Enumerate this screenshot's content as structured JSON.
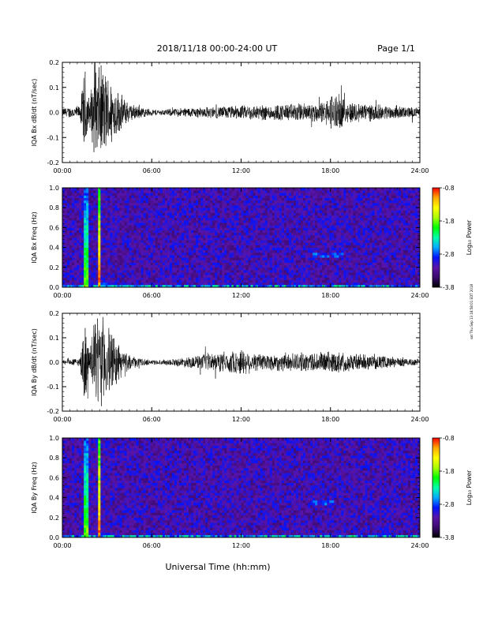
{
  "header": {
    "title": "2018/11/18  00:00-24:00 UT",
    "page": "Page 1/1"
  },
  "footer": {
    "xlabel": "Universal Time (hh:mm)"
  },
  "side_note": "sat Thu Sep 13 18:58:01 EDT 2018",
  "colorbar": {
    "label": "Log₁₀ Power",
    "ticks": [
      "-0.8",
      "-1.8",
      "-2.8",
      "-3.8"
    ],
    "colors": [
      "#000000",
      "#3a0a6e",
      "#5a14a8",
      "#0014ff",
      "#00aaff",
      "#00ffaa",
      "#00ff00",
      "#aaff00",
      "#ffff00",
      "#ffaa00",
      "#ff0000"
    ]
  },
  "chart_data": [
    {
      "type": "line",
      "ylabel": "IQA Bx dB/dt (nT/sec)",
      "x_range": [
        0,
        24
      ],
      "xticks": [
        "00:00",
        "06:00",
        "12:00",
        "18:00",
        "24:00"
      ],
      "ylim": [
        -0.2,
        0.2
      ],
      "yticks": [
        "0.2",
        "0.1",
        "0.0",
        "-0.1",
        "-0.2"
      ],
      "activity": [
        [
          0,
          0.02
        ],
        [
          1.2,
          0.03
        ],
        [
          1.5,
          0.2
        ],
        [
          1.8,
          0.06
        ],
        [
          2.2,
          0.2
        ],
        [
          2.7,
          0.2
        ],
        [
          3.2,
          0.15
        ],
        [
          3.8,
          0.09
        ],
        [
          4.5,
          0.04
        ],
        [
          5.5,
          0.02
        ],
        [
          6.5,
          0.012
        ],
        [
          8,
          0.02
        ],
        [
          10,
          0.025
        ],
        [
          12,
          0.03
        ],
        [
          14,
          0.035
        ],
        [
          16,
          0.04
        ],
        [
          17.5,
          0.045
        ],
        [
          18.3,
          0.09
        ],
        [
          19,
          0.05
        ],
        [
          21,
          0.035
        ],
        [
          24,
          0.02
        ]
      ]
    },
    {
      "type": "heatmap",
      "ylabel": "IQA Bx Freq (Hz)",
      "x_range": [
        0,
        24
      ],
      "xticks": [
        "00:00",
        "06:00",
        "12:00",
        "18:00",
        "24:00"
      ],
      "ylim": [
        0,
        1
      ],
      "yticks": [
        "1.0",
        "0.8",
        "0.6",
        "0.4",
        "0.2",
        "0.0"
      ],
      "zlim": [
        -3.8,
        -0.8
      ],
      "features": [
        {
          "t": 1.6,
          "f_max": 1.0,
          "power": -1.6
        },
        {
          "t": 2.5,
          "f_max": 1.0,
          "power": -0.8
        },
        {
          "t_range": [
            2.5,
            5
          ],
          "f_max": 0.1,
          "power": -2.3
        },
        {
          "t_range": [
            14.5,
            16
          ],
          "f": 0.38,
          "power": -2.8
        },
        {
          "t_range": [
            16.8,
            18.8
          ],
          "f": 0.33,
          "power": -2.6
        }
      ]
    },
    {
      "type": "line",
      "ylabel": "IQA By dB/dt (nT/sec)",
      "x_range": [
        0,
        24
      ],
      "xticks": [
        "00:00",
        "06:00",
        "12:00",
        "18:00",
        "24:00"
      ],
      "ylim": [
        -0.2,
        0.2
      ],
      "yticks": [
        "0.2",
        "0.1",
        "0.0",
        "-0.1",
        "-0.2"
      ],
      "activity": [
        [
          0,
          0.01
        ],
        [
          1.2,
          0.02
        ],
        [
          1.5,
          0.2
        ],
        [
          1.8,
          0.05
        ],
        [
          2.2,
          0.2
        ],
        [
          2.7,
          0.2
        ],
        [
          3.2,
          0.15
        ],
        [
          3.8,
          0.08
        ],
        [
          4.5,
          0.03
        ],
        [
          5.5,
          0.015
        ],
        [
          6.5,
          0.01
        ],
        [
          8,
          0.02
        ],
        [
          9,
          0.03
        ],
        [
          10,
          0.04
        ],
        [
          11.5,
          0.05
        ],
        [
          12,
          0.06
        ],
        [
          13,
          0.04
        ],
        [
          15,
          0.04
        ],
        [
          16,
          0.04
        ],
        [
          18,
          0.05
        ],
        [
          21,
          0.03
        ],
        [
          24,
          0.015
        ]
      ]
    },
    {
      "type": "heatmap",
      "ylabel": "IQA By Freq (Hz)",
      "x_range": [
        0,
        24
      ],
      "xticks": [
        "00:00",
        "06:00",
        "12:00",
        "18:00",
        "24:00"
      ],
      "ylim": [
        0,
        1
      ],
      "yticks": [
        "1.0",
        "0.8",
        "0.6",
        "0.4",
        "0.2",
        "0.0"
      ],
      "zlim": [
        -3.8,
        -0.8
      ],
      "features": [
        {
          "t": 1.6,
          "f_max": 1.0,
          "power": -1.6
        },
        {
          "t": 2.5,
          "f_max": 1.0,
          "power": -0.8
        },
        {
          "t_range": [
            2.5,
            5
          ],
          "f_max": 0.12,
          "power": -2.3
        },
        {
          "t_range": [
            14.5,
            16
          ],
          "f": 0.38,
          "power": -2.8
        },
        {
          "t_range": [
            16.8,
            18.2
          ],
          "f": 0.35,
          "power": -2.6
        }
      ]
    }
  ]
}
